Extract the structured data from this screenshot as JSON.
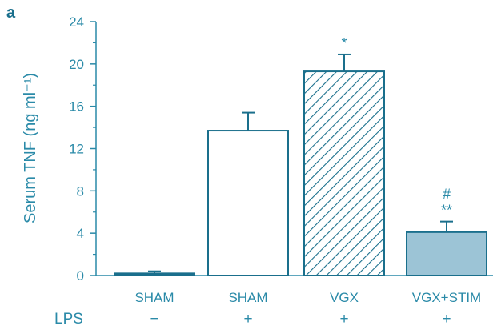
{
  "panel_label": "a",
  "chart_data": {
    "type": "bar",
    "ylabel": "Serum TNF (ng ml⁻¹)",
    "ylim": [
      0,
      24
    ],
    "yticks": [
      0,
      4,
      8,
      12,
      16,
      20,
      24
    ],
    "categories": [
      "SHAM",
      "SHAM",
      "VGX",
      "VGX+STIM"
    ],
    "values": [
      0.2,
      13.7,
      19.3,
      4.1
    ],
    "errors": [
      0.2,
      1.7,
      1.6,
      1.0
    ],
    "fills": [
      "solid",
      "open",
      "hatched",
      "solid-light"
    ],
    "colors": {
      "axis": "#2a8aa8",
      "bar_edge": "#1a6f8c",
      "light_fill": "#9cc4d6"
    },
    "annotations": [
      "",
      "",
      "*",
      "#\n**"
    ],
    "lps_row": {
      "label": "LPS",
      "values": [
        "−",
        "+",
        "+",
        "+"
      ]
    }
  }
}
